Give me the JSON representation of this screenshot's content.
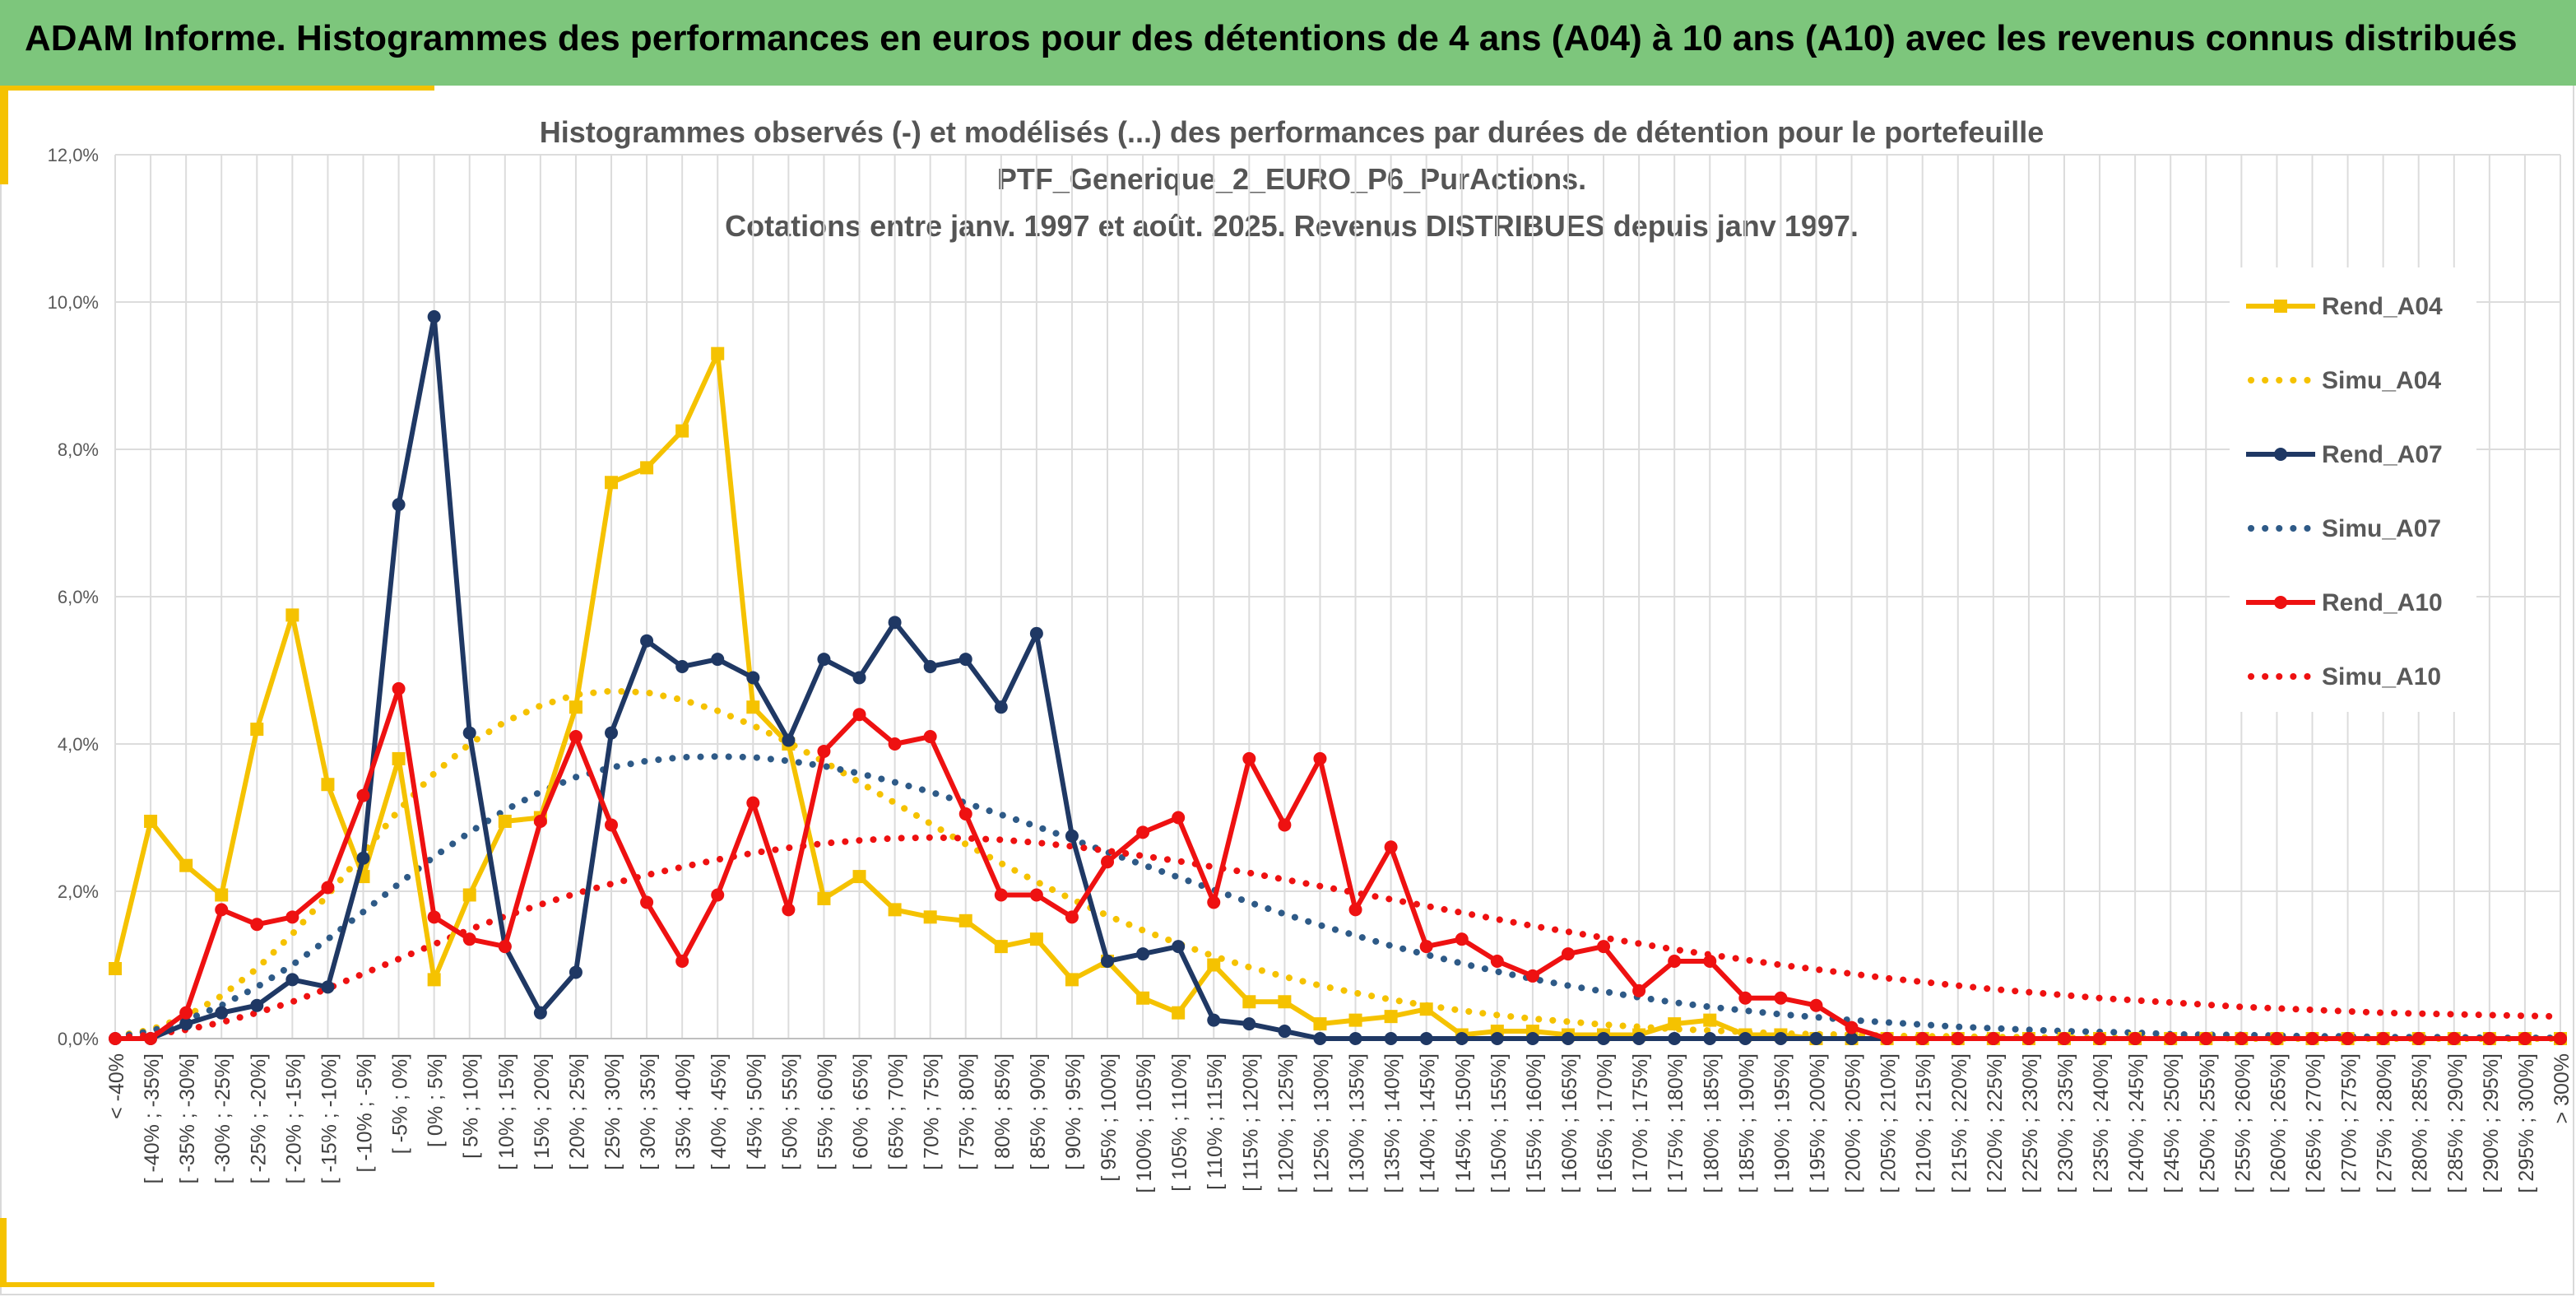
{
  "banner": {
    "title": "ADAM Informe. Histogrammes des performances en euros pour des détentions de 4 ans (A04) à 10 ans (A10) avec les revenus connus distribués"
  },
  "colors": {
    "banner_bg": "#7dc67c",
    "accent": "#f5c200",
    "series_A04": "#f5c200",
    "series_A07": "#1f3864",
    "series_A10": "#ee1111",
    "simu_A07": "#2e5a87"
  },
  "chart_data": {
    "type": "line",
    "title_lines": [
      "Histogrammes observés (-) et modélisés (...) des performances par durées de détention pour le portefeuille",
      "PTF_Generique_2_EURO_P6_PurActions.",
      "Cotations entre janv. 1997 et août. 2025. Revenus DISTRIBUES depuis janv 1997."
    ],
    "y_ticks": [
      "0,0%",
      "2,0%",
      "4,0%",
      "6,0%",
      "8,0%",
      "10,0%",
      "12,0%"
    ],
    "ylim": [
      0,
      12
    ],
    "grid": true,
    "legend_position": "right",
    "categories": [
      "< -40%",
      "[ -40% ; -35%]",
      "[ -35% ; -30%]",
      "[ -30% ; -25%]",
      "[ -25% ; -20%]",
      "[ -20% ; -15%]",
      "[ -15% ; -10%]",
      "[ -10% ; -5%]",
      "[ -5% ; 0%]",
      "[ 0% ; 5%]",
      "[ 5% ; 10%]",
      "[ 10% ; 15%]",
      "[ 15% ; 20%]",
      "[ 20% ; 25%]",
      "[ 25% ; 30%]",
      "[ 30% ; 35%]",
      "[ 35% ; 40%]",
      "[ 40% ; 45%]",
      "[ 45% ; 50%]",
      "[ 50% ; 55%]",
      "[ 55% ; 60%]",
      "[ 60% ; 65%]",
      "[ 65% ; 70%]",
      "[ 70% ; 75%]",
      "[ 75% ; 80%]",
      "[ 80% ; 85%]",
      "[ 85% ; 90%]",
      "[ 90% ; 95%]",
      "[ 95% ; 100%]",
      "[ 100% ; 105%]",
      "[ 105% ; 110%]",
      "[ 110% ; 115%]",
      "[ 115% ; 120%]",
      "[ 120% ; 125%]",
      "[ 125% ; 130%]",
      "[ 130% ; 135%]",
      "[ 135% ; 140%]",
      "[ 140% ; 145%]",
      "[ 145% ; 150%]",
      "[ 150% ; 155%]",
      "[ 155% ; 160%]",
      "[ 160% ; 165%]",
      "[ 165% ; 170%]",
      "[ 170% ; 175%]",
      "[ 175% ; 180%]",
      "[ 180% ; 185%]",
      "[ 185% ; 190%]",
      "[ 190% ; 195%]",
      "[ 195% ; 200%]",
      "[ 200% ; 205%]",
      "[ 205% ; 210%]",
      "[ 210% ; 215%]",
      "[ 215% ; 220%]",
      "[ 220% ; 225%]",
      "[ 225% ; 230%]",
      "[ 230% ; 235%]",
      "[ 235% ; 240%]",
      "[ 240% ; 245%]",
      "[ 245% ; 250%]",
      "[ 250% ; 255%]",
      "[ 255% ; 260%]",
      "[ 260% ; 265%]",
      "[ 265% ; 270%]",
      "[ 270% ; 275%]",
      "[ 275% ; 280%]",
      "[ 280% ; 285%]",
      "[ 285% ; 290%]",
      "[ 290% ; 295%]",
      "[ 295% ; 300%]",
      "> 300%"
    ],
    "series": [
      {
        "name": "Rend_A04",
        "style": "solid",
        "marker": "square",
        "color": "#f5c200",
        "values": [
          0.95,
          2.95,
          2.35,
          1.95,
          4.2,
          5.75,
          3.45,
          2.2,
          3.8,
          0.8,
          1.95,
          2.95,
          3.0,
          4.5,
          7.55,
          7.75,
          8.25,
          9.3,
          4.5,
          4.0,
          1.9,
          2.2,
          1.75,
          1.65,
          1.6,
          1.25,
          1.35,
          0.8,
          1.05,
          0.55,
          0.35,
          1.0,
          0.5,
          0.5,
          0.2,
          0.25,
          0.3,
          0.4,
          0.05,
          0.1,
          0.1,
          0.05,
          0.05,
          0.05,
          0.2,
          0.25,
          0.05,
          0.05,
          0,
          0,
          0,
          0,
          0,
          0,
          0,
          0,
          0,
          0,
          0,
          0,
          0,
          0,
          0,
          0,
          0,
          0,
          0,
          0,
          0,
          0
        ]
      },
      {
        "name": "Simu_A04",
        "style": "dotted",
        "color": "#f5c200",
        "values": [
          0.03,
          0.12,
          0.3,
          0.58,
          0.95,
          1.42,
          1.95,
          2.52,
          3.1,
          3.6,
          4.0,
          4.3,
          4.52,
          4.67,
          4.72,
          4.7,
          4.6,
          4.45,
          4.25,
          4.02,
          3.76,
          3.48,
          3.2,
          2.92,
          2.64,
          2.38,
          2.13,
          1.89,
          1.67,
          1.47,
          1.29,
          1.12,
          0.97,
          0.84,
          0.72,
          0.62,
          0.53,
          0.45,
          0.38,
          0.32,
          0.27,
          0.23,
          0.19,
          0.16,
          0.13,
          0.11,
          0.09,
          0.07,
          0.06,
          0.05,
          0.04,
          0.03,
          0.03,
          0.02,
          0.02,
          0.01,
          0.01,
          0.01,
          0.01,
          0.01,
          0,
          0,
          0,
          0,
          0,
          0,
          0,
          0,
          0,
          0
        ]
      },
      {
        "name": "Rend_A07",
        "style": "solid",
        "marker": "circle",
        "color": "#1f3864",
        "values": [
          0,
          0,
          0.2,
          0.35,
          0.45,
          0.8,
          0.7,
          2.45,
          7.25,
          9.8,
          4.15,
          1.25,
          0.35,
          0.9,
          4.15,
          5.4,
          5.05,
          5.15,
          4.9,
          4.05,
          5.15,
          4.9,
          5.65,
          5.05,
          5.15,
          4.5,
          5.5,
          2.75,
          1.05,
          1.15,
          1.25,
          0.25,
          0.2,
          0.1,
          0,
          0,
          0,
          0,
          0,
          0,
          0,
          0,
          0,
          0,
          0,
          0,
          0,
          0,
          0,
          0,
          0,
          0,
          0,
          0,
          0,
          0,
          0,
          0,
          0,
          0,
          0,
          0,
          0,
          0,
          0,
          0,
          0,
          0,
          0,
          0
        ]
      },
      {
        "name": "Simu_A07",
        "style": "dotted",
        "color": "#2e5a87",
        "values": [
          0.02,
          0.1,
          0.25,
          0.45,
          0.7,
          1.0,
          1.35,
          1.72,
          2.1,
          2.47,
          2.8,
          3.1,
          3.35,
          3.55,
          3.68,
          3.77,
          3.82,
          3.83,
          3.82,
          3.77,
          3.7,
          3.6,
          3.48,
          3.35,
          3.2,
          3.04,
          2.88,
          2.71,
          2.53,
          2.36,
          2.19,
          2.02,
          1.85,
          1.69,
          1.54,
          1.4,
          1.26,
          1.14,
          1.02,
          0.91,
          0.81,
          0.72,
          0.64,
          0.56,
          0.49,
          0.43,
          0.38,
          0.33,
          0.29,
          0.25,
          0.22,
          0.19,
          0.16,
          0.14,
          0.12,
          0.1,
          0.09,
          0.08,
          0.06,
          0.05,
          0.05,
          0.04,
          0.03,
          0.03,
          0.02,
          0.02,
          0.02,
          0.01,
          0.01,
          0.01
        ]
      },
      {
        "name": "Rend_A10",
        "style": "solid",
        "marker": "circle",
        "color": "#ee1111",
        "values": [
          0,
          0,
          0.35,
          1.75,
          1.55,
          1.65,
          2.05,
          3.3,
          4.75,
          1.65,
          1.35,
          1.25,
          2.95,
          4.1,
          2.9,
          1.85,
          1.05,
          1.95,
          3.2,
          1.75,
          3.9,
          4.4,
          4.0,
          4.1,
          3.05,
          1.95,
          1.95,
          1.65,
          2.4,
          2.8,
          3.0,
          1.85,
          3.8,
          2.9,
          3.8,
          1.75,
          2.6,
          1.25,
          1.35,
          1.05,
          0.85,
          1.15,
          1.25,
          0.65,
          1.05,
          1.05,
          0.55,
          0.55,
          0.45,
          0.15,
          0,
          0,
          0,
          0,
          0,
          0,
          0,
          0,
          0,
          0,
          0,
          0,
          0,
          0,
          0,
          0,
          0,
          0,
          0,
          0
        ]
      },
      {
        "name": "Simu_A10",
        "style": "dotted",
        "color": "#ee1111",
        "values": [
          0.01,
          0.05,
          0.12,
          0.22,
          0.35,
          0.5,
          0.68,
          0.88,
          1.08,
          1.28,
          1.48,
          1.66,
          1.82,
          1.97,
          2.1,
          2.22,
          2.33,
          2.43,
          2.52,
          2.59,
          2.65,
          2.69,
          2.72,
          2.73,
          2.72,
          2.7,
          2.66,
          2.61,
          2.55,
          2.48,
          2.41,
          2.33,
          2.25,
          2.16,
          2.07,
          1.98,
          1.89,
          1.8,
          1.71,
          1.62,
          1.53,
          1.45,
          1.37,
          1.29,
          1.21,
          1.14,
          1.07,
          1.0,
          0.94,
          0.88,
          0.82,
          0.77,
          0.72,
          0.67,
          0.63,
          0.59,
          0.55,
          0.52,
          0.49,
          0.46,
          0.43,
          0.41,
          0.39,
          0.37,
          0.35,
          0.34,
          0.33,
          0.32,
          0.31,
          0.3
        ]
      }
    ]
  }
}
